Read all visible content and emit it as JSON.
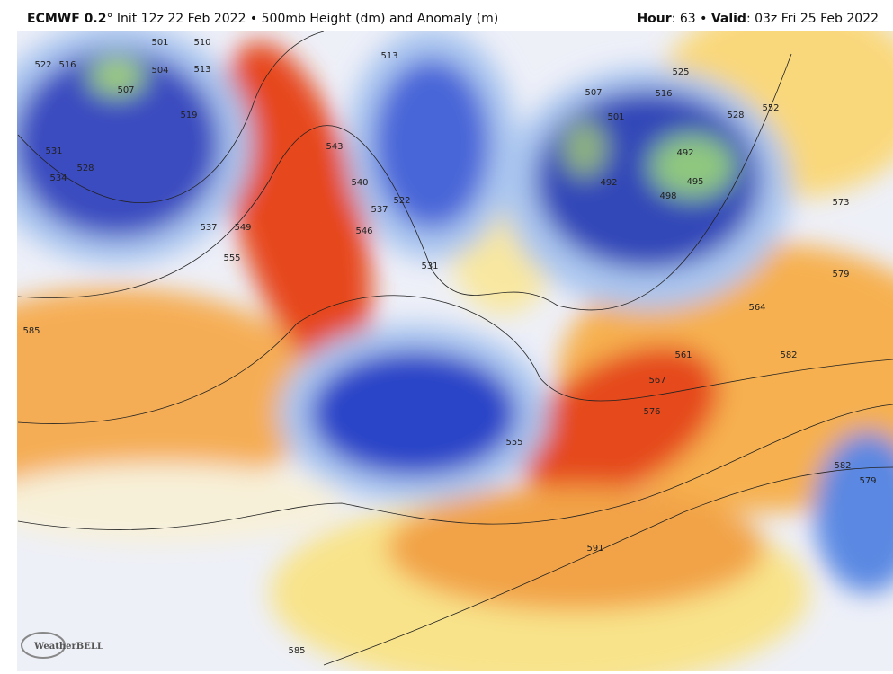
{
  "header": {
    "left": {
      "model": "ECMWF 0.2",
      "rest": "° Init 12z 22 Feb 2022 • 500mb Height (dm) and Anomaly (m)"
    },
    "right": {
      "hour_label": "Hour",
      "hour": ": 63 • ",
      "valid_label": "Valid",
      "valid": ": 03z Fri 25 Feb 2022"
    }
  },
  "contour_labels": [
    501,
    510,
    522,
    516,
    504,
    513,
    507,
    519,
    531,
    528,
    534,
    537,
    549,
    555,
    585,
    543,
    540,
    537,
    546,
    513,
    522,
    531,
    507,
    516,
    525,
    528,
    552,
    501,
    492,
    495,
    498,
    492,
    573,
    579,
    564,
    582,
    561,
    567,
    576,
    582,
    579,
    591,
    585,
    555
  ],
  "logo": {
    "name": "WeatherBELL"
  }
}
